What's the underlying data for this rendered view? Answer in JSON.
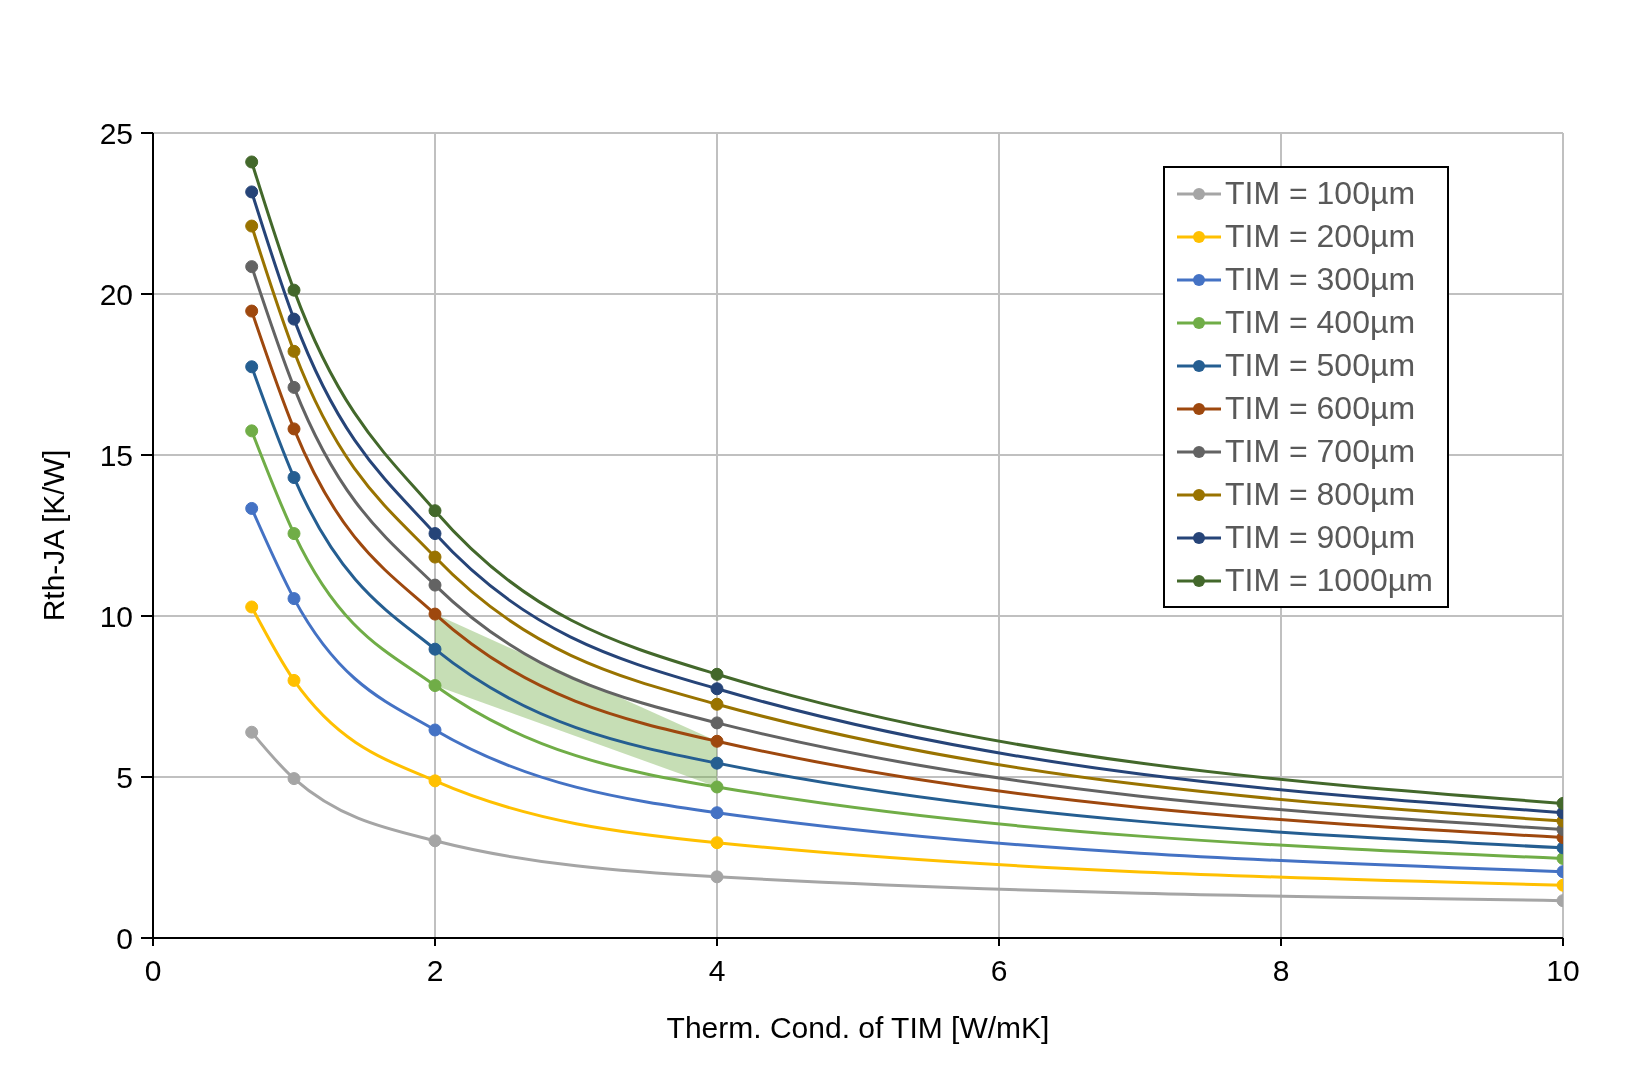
{
  "chart_data": {
    "type": "line",
    "xlabel": "Therm. Cond. of TIM [W/mK]",
    "ylabel": "Rth-JA [K/W]",
    "xlim": [
      0,
      10
    ],
    "xticks": [
      0,
      2,
      4,
      6,
      8,
      10
    ],
    "ylim": [
      0,
      25
    ],
    "yticks": [
      0,
      5,
      10,
      15,
      20,
      25
    ],
    "grid": true,
    "legend": "top right",
    "marker": "circle",
    "line_style": "solid",
    "x": [
      0.7,
      1,
      2,
      4,
      10
    ],
    "series": [
      {
        "name": "TIM = 100µm",
        "color": "#a5a5a5",
        "values": [
          6.39,
          4.95,
          3.02,
          1.9,
          1.16
        ]
      },
      {
        "name": "TIM = 200µm",
        "color": "#ffc000",
        "values": [
          10.28,
          8.0,
          4.88,
          2.96,
          1.64
        ]
      },
      {
        "name": "TIM = 300µm",
        "color": "#4472c4",
        "values": [
          13.34,
          10.54,
          6.46,
          3.89,
          2.06
        ]
      },
      {
        "name": "TIM = 400µm",
        "color": "#70ad47",
        "values": [
          15.75,
          12.56,
          7.84,
          4.69,
          2.47
        ],
        "lower": [
          null,
          null,
          7.84,
          4.69,
          null
        ],
        "upper": [
          null,
          null,
          10.06,
          6.11,
          null
        ]
      },
      {
        "name": "TIM = 500µm",
        "color": "#255e91",
        "values": [
          17.74,
          14.3,
          8.97,
          5.43,
          2.8
        ]
      },
      {
        "name": "TIM = 600µm",
        "color": "#9e480e",
        "values": [
          19.47,
          15.81,
          10.06,
          6.11,
          3.12
        ]
      },
      {
        "name": "TIM = 700µm",
        "color": "#636363",
        "values": [
          20.85,
          17.1,
          10.96,
          6.68,
          3.37
        ]
      },
      {
        "name": "TIM = 800µm",
        "color": "#997300",
        "values": [
          22.11,
          18.22,
          11.83,
          7.26,
          3.63
        ]
      },
      {
        "name": "TIM = 900µm",
        "color": "#264478",
        "values": [
          23.17,
          19.22,
          12.56,
          7.74,
          3.89
        ]
      },
      {
        "name": "TIM = 1000µm",
        "color": "#43682b",
        "values": [
          24.1,
          20.12,
          13.27,
          8.19,
          4.18
        ]
      }
    ]
  }
}
